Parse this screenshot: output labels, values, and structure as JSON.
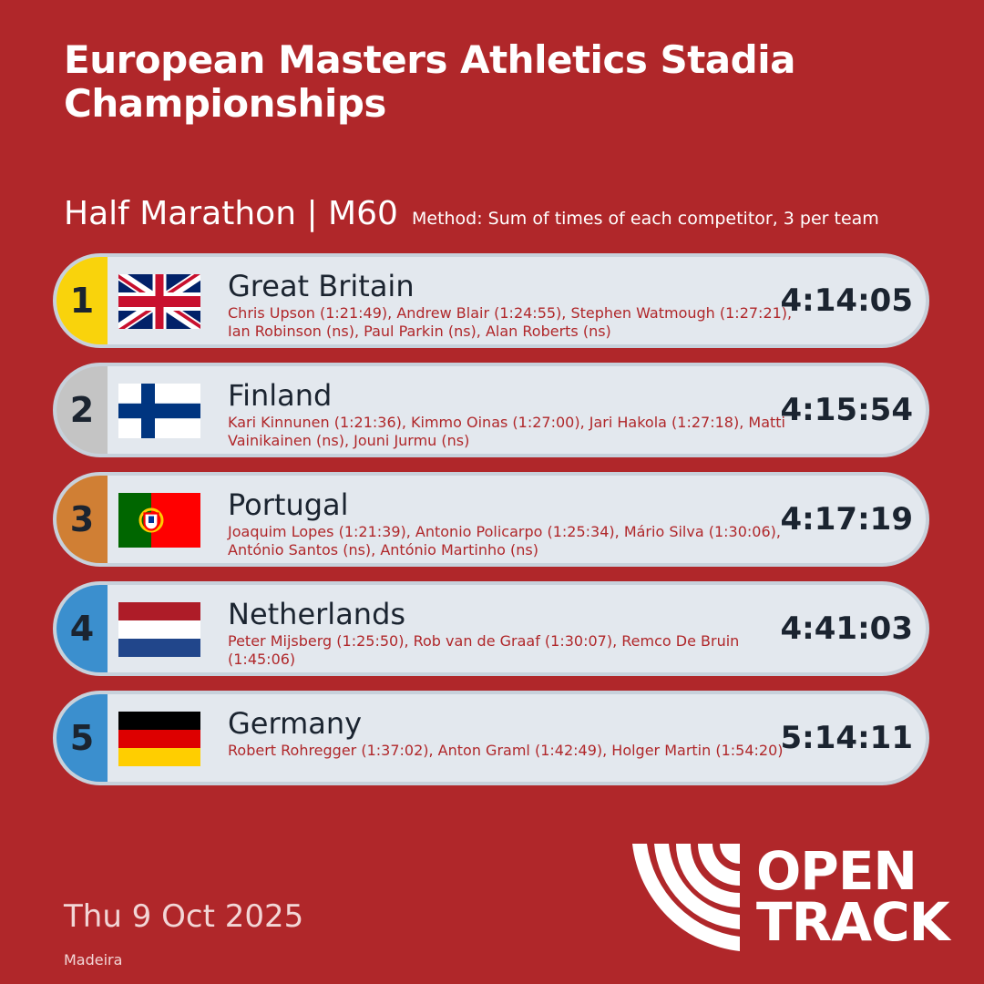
{
  "header": {
    "title": "European Masters Athletics Stadia Championships",
    "event": "Half Marathon | M60",
    "method": "Method: Sum of times of each competitor, 3 per team"
  },
  "colors": {
    "background": "#b0272a",
    "gold": "#f9d30c",
    "silver": "#c4c4c4",
    "bronze": "#d07f34",
    "blue": "#3b8fce"
  },
  "results": [
    {
      "rank": "1",
      "team": "Great Britain",
      "flag": "gb-flag-icon",
      "members": "Chris Upson (1:21:49), Andrew Blair (1:24:55), Stephen Watmough (1:27:21), Ian Robinson (ns), Paul Parkin (ns), Alan Roberts (ns)",
      "time": "4:14:05"
    },
    {
      "rank": "2",
      "team": "Finland",
      "flag": "fi-flag-icon",
      "members": "Kari Kinnunen (1:21:36), Kimmo Oinas (1:27:00), Jari Hakola (1:27:18), Matti Vainikainen (ns), Jouni Jurmu (ns)",
      "time": "4:15:54"
    },
    {
      "rank": "3",
      "team": "Portugal",
      "flag": "pt-flag-icon",
      "members": "Joaquim Lopes (1:21:39), Antonio Policarpo (1:25:34), Mário Silva (1:30:06), António Santos (ns), António Martinho (ns)",
      "time": "4:17:19"
    },
    {
      "rank": "4",
      "team": "Netherlands",
      "flag": "nl-flag-icon",
      "members": "Peter Mijsberg (1:25:50), Rob van de Graaf (1:30:07), Remco De Bruin (1:45:06)",
      "time": "4:41:03"
    },
    {
      "rank": "5",
      "team": "Germany",
      "flag": "de-flag-icon",
      "members": "Robert Rohregger (1:37:02), Anton Graml (1:42:49), Holger Martin (1:54:20)",
      "time": "5:14:11"
    }
  ],
  "footer": {
    "date": "Thu 9 Oct 2025",
    "venue": "Madeira",
    "logo_line1": "OPEN",
    "logo_line2": "TRACK"
  }
}
